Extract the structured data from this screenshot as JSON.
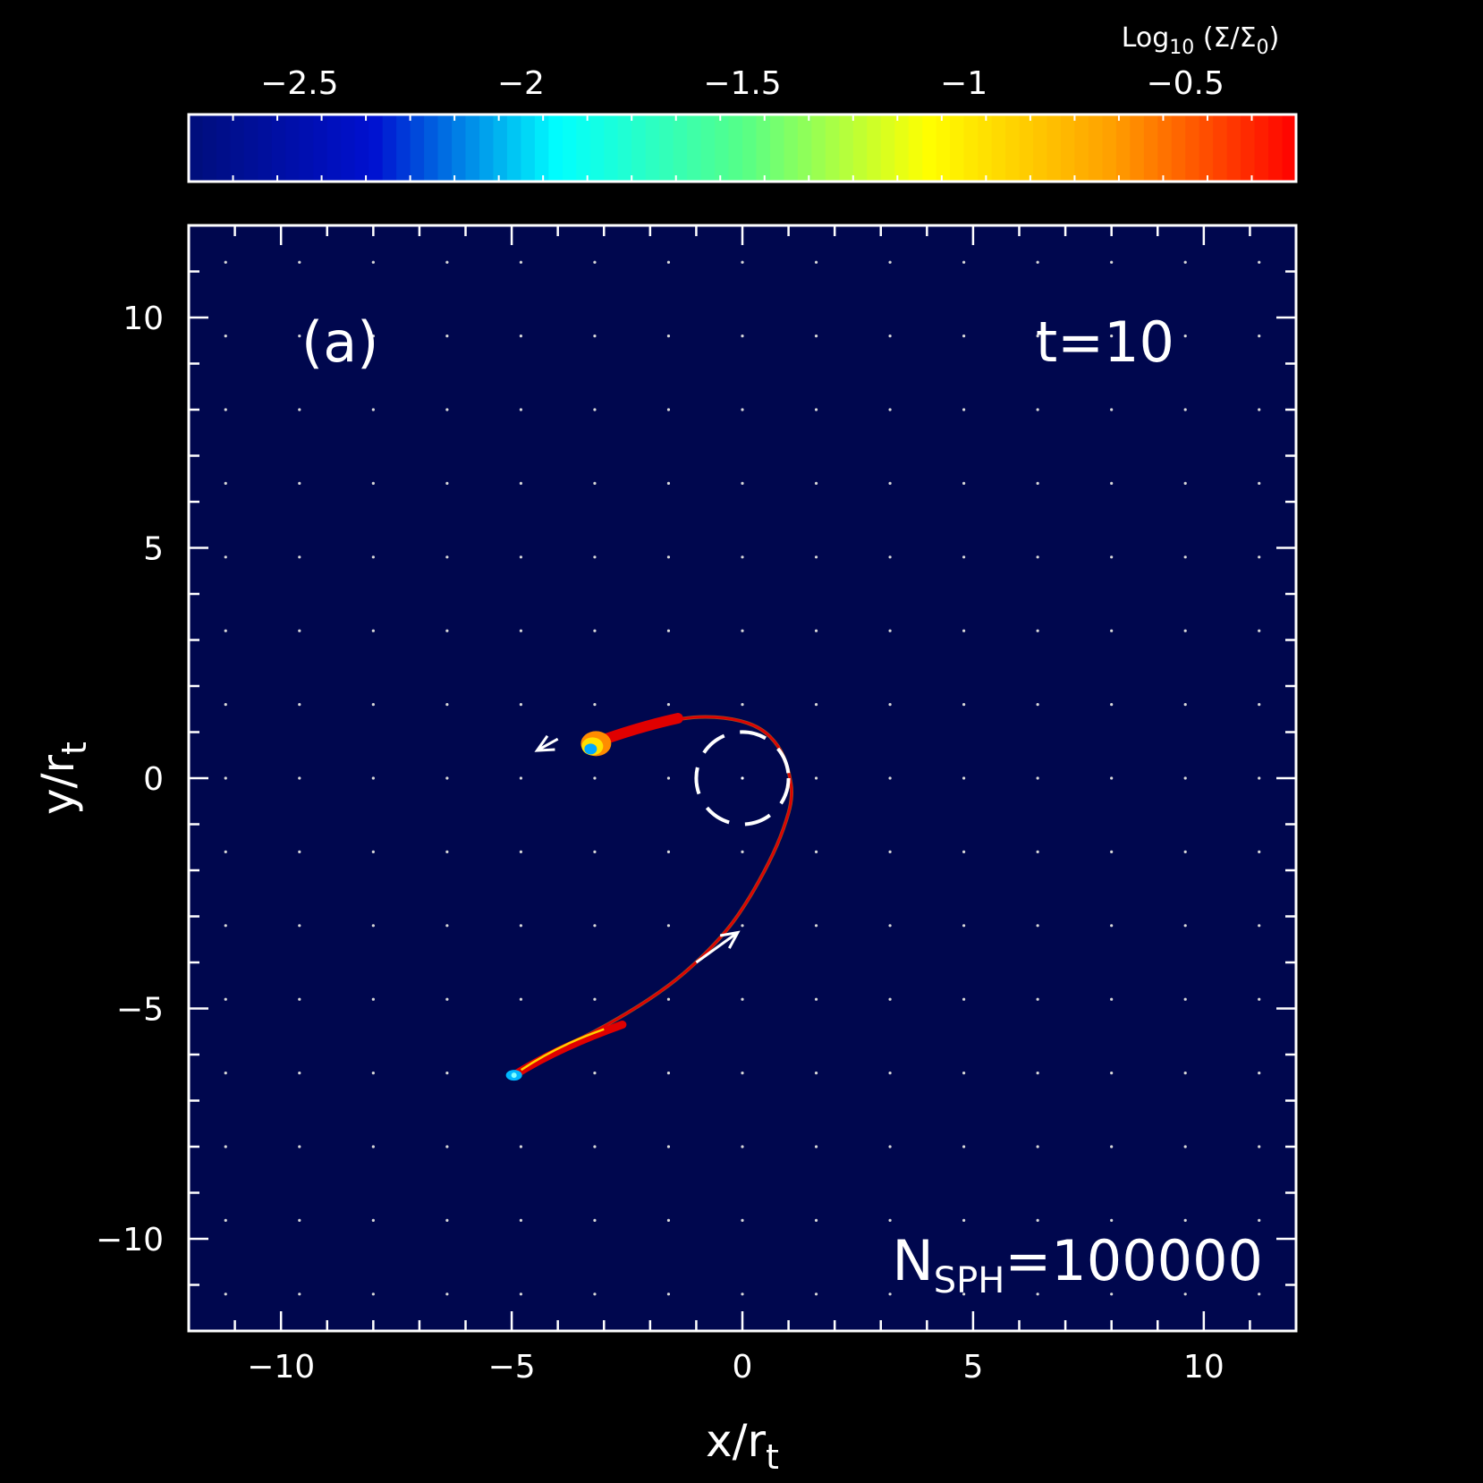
{
  "chart_data": {
    "type": "heatmap",
    "panel_label": "(a)",
    "time_label_prefix": "t=",
    "time_value": "10",
    "particle_label_main": "N",
    "particle_label_sub": "SPH",
    "particle_value": "=100000",
    "x_axis": {
      "label_main": "x/r",
      "label_sub": "t",
      "range": [
        -12,
        12
      ],
      "major_ticks": [
        -10,
        -5,
        0,
        5,
        10
      ],
      "tick_labels": [
        "−10",
        "−5",
        "0",
        "5",
        "10"
      ],
      "minor_step": 1
    },
    "y_axis": {
      "label_main": "y/r",
      "label_sub": "t",
      "range": [
        -12,
        12
      ],
      "major_ticks": [
        -10,
        -5,
        0,
        5,
        10
      ],
      "tick_labels": [
        "−10",
        "−5",
        "0",
        "5",
        "10"
      ],
      "minor_step": 1
    },
    "grid": "dotted, every 1.6 units",
    "colorbar": {
      "title": "Log₁₀ (Σ/Σ₀)",
      "range": [
        -2.75,
        -0.25
      ],
      "ticks": [
        -2.5,
        -2,
        -1.5,
        -1,
        -0.5
      ],
      "tick_labels": [
        "−2.5",
        "−2",
        "−1.5",
        "−1",
        "−0.5"
      ],
      "colormap": [
        "#000e7a",
        "#0010d0",
        "#00ffff",
        "#55ff88",
        "#ffff00",
        "#ffa000",
        "#ff0000"
      ]
    },
    "background_color": "#00074e",
    "stream": {
      "description_color": "#e00000",
      "points": [
        [
          -5.0,
          -6.5
        ],
        [
          -4.0,
          -5.9
        ],
        [
          -3.0,
          -5.4
        ],
        [
          -2.0,
          -4.8
        ],
        [
          -1.2,
          -4.2
        ],
        [
          -0.4,
          -3.4
        ],
        [
          0.1,
          -2.7
        ],
        [
          0.6,
          -1.8
        ],
        [
          0.9,
          -1.1
        ],
        [
          1.1,
          -0.4
        ],
        [
          1.0,
          0.2
        ],
        [
          0.8,
          0.7
        ],
        [
          0.4,
          1.1
        ],
        [
          -0.2,
          1.3
        ],
        [
          -1.0,
          1.35
        ],
        [
          -1.8,
          1.2
        ],
        [
          -2.6,
          1.0
        ],
        [
          -3.2,
          0.7
        ]
      ],
      "head_blob": [
        -3.25,
        0.75
      ],
      "tail_blob": [
        -4.95,
        -6.45
      ]
    },
    "black_hole_circle": {
      "center": [
        0,
        0
      ],
      "radius": 1
    },
    "arrows": [
      {
        "from": [
          -1.0,
          -4.0
        ],
        "to": [
          -0.1,
          -3.35
        ]
      },
      {
        "from": [
          -4.0,
          0.85
        ],
        "to": [
          -4.45,
          0.6
        ]
      }
    ]
  }
}
